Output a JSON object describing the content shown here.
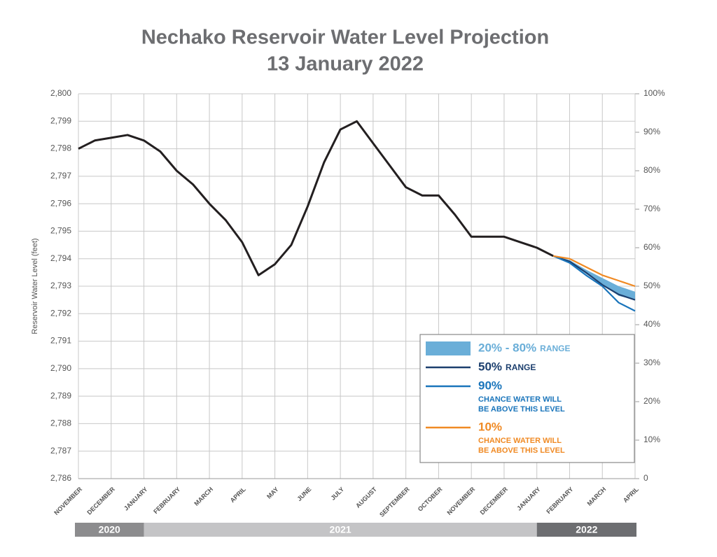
{
  "chart_data": {
    "type": "line",
    "title": [
      "Nechako Reservoir Water Level Projection",
      "13 January 2022"
    ],
    "ylabel": "Reservoir Water Level (feet)",
    "categories": [
      "NOVEMBER",
      null,
      "DECEMBER",
      null,
      "JANUARY",
      null,
      "FEBRUARY",
      null,
      "MARCH",
      null,
      "APRIL",
      null,
      "MAY",
      null,
      "JUNE",
      null,
      "JULY",
      null,
      "AUGUST",
      null,
      "SEPTEMBER",
      null,
      "OCTOBER",
      null,
      "NOVEMBER",
      null,
      "DECEMBER",
      null,
      "JANUARY",
      null,
      "FEBRUARY",
      null,
      "MARCH",
      null,
      "APRIL"
    ],
    "year_labels": [
      "2020",
      "2021",
      "2022"
    ],
    "ylim": [
      2786,
      2800
    ],
    "yticks": [
      {
        "value": 2786,
        "label": "2,786"
      },
      {
        "value": 2787,
        "label": "2,787"
      },
      {
        "value": 2788,
        "label": "2,788"
      },
      {
        "value": 2789,
        "label": "2,789"
      },
      {
        "value": 2790,
        "label": "2,790"
      },
      {
        "value": 2791,
        "label": "2,791"
      },
      {
        "value": 2792,
        "label": "2,792"
      },
      {
        "value": 2793,
        "label": "2,793"
      },
      {
        "value": 2794,
        "label": "2,794"
      },
      {
        "value": 2795,
        "label": "2,795"
      },
      {
        "value": 2796,
        "label": "2,796"
      },
      {
        "value": 2797,
        "label": "2,797"
      },
      {
        "value": 2798,
        "label": "2,798"
      },
      {
        "value": 2799,
        "label": "2,799"
      },
      {
        "value": 2800,
        "label": "2,800"
      }
    ],
    "y2lim": [
      0,
      100
    ],
    "y2ticks": [
      0,
      {
        "value": 10,
        "label": "10%"
      },
      {
        "value": 20,
        "label": "20%"
      },
      {
        "value": 30,
        "label": "30%"
      },
      {
        "value": 40,
        "label": "40%"
      },
      {
        "value": 50,
        "label": "50%"
      },
      {
        "value": 60,
        "label": "60%"
      },
      {
        "value": 70,
        "label": "70%"
      },
      {
        "value": 80,
        "label": "80%"
      },
      {
        "value": 90,
        "label": "90%"
      },
      {
        "value": 100,
        "label": "100%"
      }
    ],
    "grid": true,
    "series": [
      {
        "color": "#231f20",
        "values": [
          2798.0,
          2798.3,
          2798.4,
          2798.5,
          2798.3,
          2797.9,
          2797.2,
          2796.7,
          2796.0,
          2795.4,
          2794.6,
          2793.4,
          2793.8,
          2794.5,
          2795.9,
          2797.5,
          2798.7,
          2799.0,
          2798.2,
          2797.4,
          2796.6,
          2796.3,
          2796.3,
          2795.6,
          2794.8,
          2794.8,
          2794.8,
          2794.6,
          2794.4,
          2794.1,
          null,
          null,
          null,
          null,
          null
        ]
      },
      {
        "name": "20% - 80%",
        "suffix": "RANGE",
        "kind": "band",
        "color": "#6aaed8",
        "lower": [
          null,
          null,
          null,
          null,
          null,
          null,
          null,
          null,
          null,
          null,
          null,
          null,
          null,
          null,
          null,
          null,
          null,
          null,
          null,
          null,
          null,
          null,
          null,
          null,
          null,
          null,
          null,
          null,
          null,
          2794.1,
          2793.85,
          2793.45,
          2793.05,
          2792.65,
          2792.5
        ],
        "upper": [
          null,
          null,
          null,
          null,
          null,
          null,
          null,
          null,
          null,
          null,
          null,
          null,
          null,
          null,
          null,
          null,
          null,
          null,
          null,
          null,
          null,
          null,
          null,
          null,
          null,
          null,
          null,
          null,
          null,
          2794.1,
          2793.95,
          2793.6,
          2793.3,
          2793.0,
          2792.8
        ]
      },
      {
        "name": "50%",
        "suffix": "RANGE",
        "color": "#1c3f6e",
        "values": [
          null,
          null,
          null,
          null,
          null,
          null,
          null,
          null,
          null,
          null,
          null,
          null,
          null,
          null,
          null,
          null,
          null,
          null,
          null,
          null,
          null,
          null,
          null,
          null,
          null,
          null,
          null,
          null,
          null,
          2794.1,
          2793.9,
          2793.5,
          2793.05,
          2792.7,
          2792.5
        ]
      },
      {
        "name": "90%",
        "note": [
          "CHANCE WATER WILL",
          "BE ABOVE THIS LEVEL"
        ],
        "color": "#1a75bb",
        "values": [
          null,
          null,
          null,
          null,
          null,
          null,
          null,
          null,
          null,
          null,
          null,
          null,
          null,
          null,
          null,
          null,
          null,
          null,
          null,
          null,
          null,
          null,
          null,
          null,
          null,
          null,
          null,
          null,
          null,
          2794.1,
          2793.85,
          2793.4,
          2793.0,
          2792.4,
          2792.1
        ]
      },
      {
        "name": "10%",
        "note": [
          "CHANCE WATER WILL",
          "BE ABOVE THIS LEVEL"
        ],
        "color": "#f08a24",
        "values": [
          null,
          null,
          null,
          null,
          null,
          null,
          null,
          null,
          null,
          null,
          null,
          null,
          null,
          null,
          null,
          null,
          null,
          null,
          null,
          null,
          null,
          null,
          null,
          null,
          null,
          null,
          null,
          null,
          null,
          2794.1,
          2794.0,
          2793.7,
          2793.4,
          2793.2,
          2793.0
        ]
      }
    ]
  }
}
